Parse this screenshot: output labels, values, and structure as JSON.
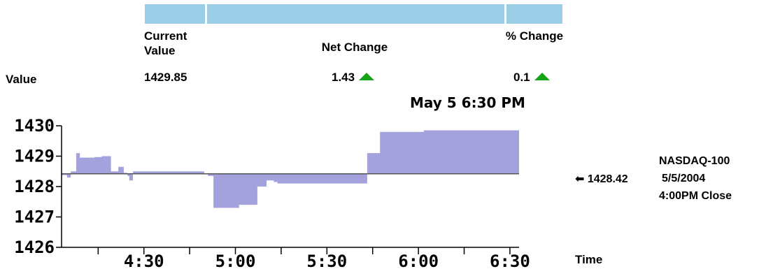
{
  "header": {
    "current_value_label": "Current Value",
    "net_change_label": "Net Change",
    "pct_change_label": "% Change",
    "row_label": "Value",
    "current_value": "1429.85",
    "net_change": "1.43",
    "pct_change": "0.1",
    "up_color": "#16a316"
  },
  "timestamp": "May 5 6:30 PM",
  "reference": {
    "value": 1428.42,
    "value_text": "1428.42",
    "arrow": "⬅",
    "index_name": "NASDAQ-100",
    "date": "5/5/2004",
    "close_label": "4:00PM Close"
  },
  "chart_data": {
    "type": "area",
    "title": "",
    "xlabel": "Time",
    "ylabel": "",
    "baseline": 1428.42,
    "fill_color": "#a3a2dc",
    "ylim": [
      1426,
      1430
    ],
    "yticks": [
      1426,
      1427,
      1428,
      1429,
      1430
    ],
    "ytick_labels": [
      "1426",
      "1427",
      "1428",
      "1429",
      "1430"
    ],
    "xlim": [
      4.05,
      6.55
    ],
    "xticks": [
      4.5,
      5.0,
      5.5,
      6.0,
      6.5
    ],
    "xtick_labels": [
      "4:30",
      "5:00",
      "5:30",
      "6:00",
      "6:30"
    ],
    "minor_xticks": [
      4.25,
      4.75,
      5.25,
      5.75,
      6.25
    ],
    "points": [
      [
        4.05,
        1428.38
      ],
      [
        4.08,
        1428.3
      ],
      [
        4.1,
        1428.5
      ],
      [
        4.13,
        1429.1
      ],
      [
        4.15,
        1428.95
      ],
      [
        4.23,
        1428.97
      ],
      [
        4.27,
        1429.0
      ],
      [
        4.32,
        1428.5
      ],
      [
        4.36,
        1428.65
      ],
      [
        4.39,
        1428.45
      ],
      [
        4.41,
        1428.35
      ],
      [
        4.42,
        1428.2
      ],
      [
        4.44,
        1428.5
      ],
      [
        4.83,
        1428.4
      ],
      [
        4.85,
        1428.35
      ],
      [
        4.88,
        1427.3
      ],
      [
        5.02,
        1427.4
      ],
      [
        5.12,
        1428.0
      ],
      [
        5.17,
        1428.2
      ],
      [
        5.21,
        1428.15
      ],
      [
        5.23,
        1428.1
      ],
      [
        5.7,
        1428.1
      ],
      [
        5.72,
        1429.1
      ],
      [
        5.79,
        1429.8
      ],
      [
        6.03,
        1429.85
      ],
      [
        6.55,
        1429.85
      ]
    ]
  }
}
